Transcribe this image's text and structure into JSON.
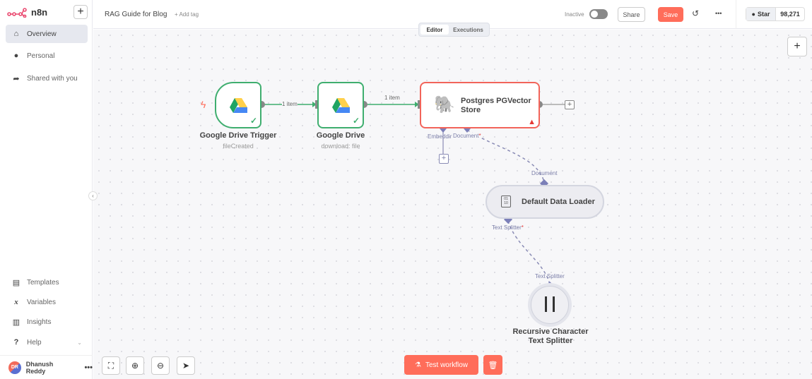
{
  "app": {
    "name": "n8n",
    "brand_color": "#ea4b71",
    "accent": "#ff6d5a"
  },
  "sidebar": {
    "items": [
      {
        "label": "Overview",
        "icon": "home-icon",
        "active": true
      },
      {
        "label": "Personal",
        "icon": "user-icon"
      },
      {
        "label": "Shared with you",
        "icon": "share-icon"
      }
    ],
    "bottom_items": [
      {
        "label": "Templates",
        "icon": "box-icon"
      },
      {
        "label": "Variables",
        "icon": "variable-icon"
      },
      {
        "label": "Insights",
        "icon": "chart-icon"
      },
      {
        "label": "Help",
        "icon": "question-icon"
      }
    ],
    "user": {
      "initials": "DR",
      "name": "Dhanush Reddy"
    }
  },
  "header": {
    "title": "RAG Guide for Blog",
    "add_tag": "+ Add tag",
    "status": "Inactive",
    "active": false,
    "share": "Share",
    "save": "Save",
    "github": {
      "label": "Star",
      "count": "98,271"
    }
  },
  "tabs": [
    {
      "label": "Editor",
      "active": true
    },
    {
      "label": "Executions"
    }
  ],
  "nodes": {
    "trigger": {
      "title": "Google Drive Trigger",
      "subtitle": "fileCreated"
    },
    "drive": {
      "title": "Google Drive",
      "subtitle": "download: file"
    },
    "pg": {
      "title1": "Postgres PGVector",
      "title2": "Store",
      "in_embedding": "Embeddir",
      "in_document": "Document",
      "required": "*"
    },
    "loader": {
      "title": "Default Data Loader",
      "in_label": "Document",
      "out_label": "Text Splitter",
      "required": "*"
    },
    "splitter": {
      "title1": "Recursive Character",
      "title2": "Text Splitter",
      "out_label": "Text Splitter"
    }
  },
  "connections": {
    "c1": "1 item",
    "c2": "1 item"
  },
  "footer": {
    "test": "Test workflow"
  }
}
